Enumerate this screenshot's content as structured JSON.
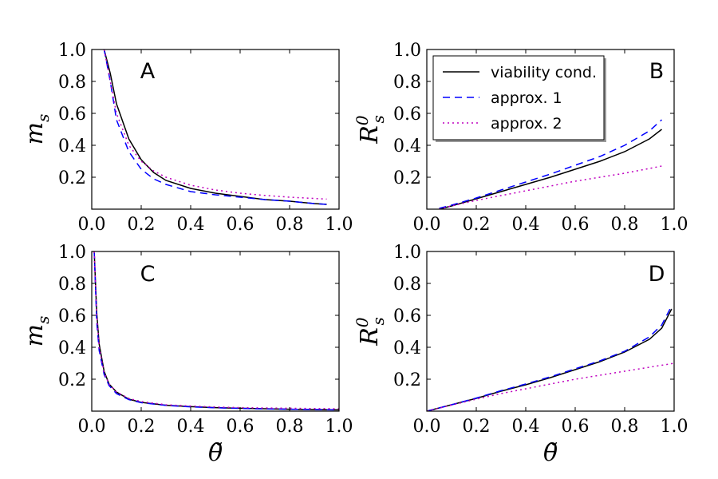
{
  "chart_data": [
    {
      "type": "line",
      "panel": "A",
      "ylabel": "m_s",
      "xlabel": "",
      "xlim": [
        0.0,
        1.0
      ],
      "ylim": [
        0.0,
        1.0
      ],
      "xticks": [
        "0.0",
        "0.2",
        "0.4",
        "0.6",
        "0.8",
        "1.0"
      ],
      "yticks": [
        "0.2",
        "0.4",
        "0.6",
        "0.8",
        "1.0"
      ],
      "series": [
        {
          "name": "viability cond.",
          "x": [
            0.05,
            0.075,
            0.1,
            0.15,
            0.2,
            0.25,
            0.3,
            0.4,
            0.5,
            0.6,
            0.7,
            0.8,
            0.9,
            0.95
          ],
          "y": [
            1.0,
            0.85,
            0.66,
            0.44,
            0.31,
            0.23,
            0.18,
            0.13,
            0.1,
            0.08,
            0.06,
            0.05,
            0.035,
            0.03
          ]
        },
        {
          "name": "approx. 1",
          "x": [
            0.05,
            0.075,
            0.1,
            0.15,
            0.2,
            0.25,
            0.3,
            0.4,
            0.5,
            0.6,
            0.7,
            0.8,
            0.9,
            0.95
          ],
          "y": [
            1.0,
            0.8,
            0.56,
            0.36,
            0.25,
            0.19,
            0.155,
            0.11,
            0.09,
            0.075,
            0.06,
            0.05,
            0.035,
            0.03
          ]
        },
        {
          "name": "approx. 2",
          "x": [
            0.05,
            0.075,
            0.1,
            0.15,
            0.2,
            0.25,
            0.3,
            0.4,
            0.5,
            0.6,
            0.7,
            0.8,
            0.9,
            0.95
          ],
          "y": [
            1.0,
            0.8,
            0.6,
            0.4,
            0.3,
            0.24,
            0.2,
            0.15,
            0.12,
            0.1,
            0.086,
            0.075,
            0.067,
            0.063
          ]
        }
      ]
    },
    {
      "type": "line",
      "panel": "B",
      "ylabel": "R_s^0",
      "xlabel": "",
      "xlim": [
        0.0,
        1.0
      ],
      "ylim": [
        0.0,
        1.0
      ],
      "xticks": [
        "0.0",
        "0.2",
        "0.4",
        "0.6",
        "0.8",
        "1.0"
      ],
      "yticks": [
        "0.2",
        "0.4",
        "0.6",
        "0.8",
        "1.0"
      ],
      "legend": "top-left",
      "series": [
        {
          "name": "viability cond.",
          "x": [
            0.05,
            0.1,
            0.2,
            0.3,
            0.4,
            0.5,
            0.6,
            0.7,
            0.8,
            0.9,
            0.95
          ],
          "y": [
            0.0,
            0.02,
            0.065,
            0.11,
            0.155,
            0.2,
            0.25,
            0.3,
            0.36,
            0.44,
            0.5
          ]
        },
        {
          "name": "approx. 1",
          "x": [
            0.05,
            0.1,
            0.2,
            0.3,
            0.4,
            0.5,
            0.6,
            0.7,
            0.8,
            0.9,
            0.95
          ],
          "y": [
            0.005,
            0.025,
            0.07,
            0.12,
            0.17,
            0.22,
            0.275,
            0.33,
            0.4,
            0.49,
            0.56
          ]
        },
        {
          "name": "approx. 2",
          "x": [
            0.05,
            0.1,
            0.2,
            0.3,
            0.4,
            0.5,
            0.6,
            0.7,
            0.8,
            0.9,
            0.95
          ],
          "y": [
            0.0,
            0.02,
            0.055,
            0.085,
            0.115,
            0.145,
            0.175,
            0.2,
            0.225,
            0.255,
            0.27
          ]
        }
      ]
    },
    {
      "type": "line",
      "panel": "C",
      "ylabel": "m_s",
      "xlabel": "θ̃",
      "xlim": [
        0.0,
        1.0
      ],
      "ylim": [
        0.0,
        1.0
      ],
      "xticks": [
        "0.0",
        "0.2",
        "0.4",
        "0.6",
        "0.8",
        "1.0"
      ],
      "yticks": [
        "0.2",
        "0.4",
        "0.6",
        "0.8",
        "1.0"
      ],
      "series": [
        {
          "name": "viability cond.",
          "x": [
            0.01,
            0.02,
            0.03,
            0.05,
            0.07,
            0.1,
            0.15,
            0.2,
            0.3,
            0.4,
            0.5,
            0.6,
            0.7,
            0.8,
            0.9,
            1.0
          ],
          "y": [
            1.0,
            0.62,
            0.42,
            0.25,
            0.17,
            0.12,
            0.075,
            0.055,
            0.037,
            0.028,
            0.022,
            0.018,
            0.015,
            0.012,
            0.01,
            0.008
          ]
        },
        {
          "name": "approx. 1",
          "x": [
            0.01,
            0.02,
            0.03,
            0.05,
            0.07,
            0.1,
            0.15,
            0.2,
            0.3,
            0.4,
            0.5,
            0.6,
            0.7,
            0.8,
            0.9,
            1.0
          ],
          "y": [
            1.0,
            0.56,
            0.38,
            0.23,
            0.16,
            0.11,
            0.072,
            0.053,
            0.036,
            0.027,
            0.021,
            0.017,
            0.014,
            0.012,
            0.01,
            0.008
          ]
        },
        {
          "name": "approx. 2",
          "x": [
            0.01,
            0.02,
            0.03,
            0.05,
            0.07,
            0.1,
            0.15,
            0.2,
            0.3,
            0.4,
            0.5,
            0.6,
            0.7,
            0.8,
            0.9,
            1.0
          ],
          "y": [
            1.0,
            0.6,
            0.4,
            0.24,
            0.17,
            0.12,
            0.08,
            0.06,
            0.04,
            0.032,
            0.026,
            0.022,
            0.02,
            0.018,
            0.016,
            0.015
          ]
        }
      ]
    },
    {
      "type": "line",
      "panel": "D",
      "ylabel": "R_s^0",
      "xlabel": "θ̃",
      "xlim": [
        0.0,
        1.0
      ],
      "ylim": [
        0.0,
        1.0
      ],
      "xticks": [
        "0.0",
        "0.2",
        "0.4",
        "0.6",
        "0.8",
        "1.0"
      ],
      "yticks": [
        "0.2",
        "0.4",
        "0.6",
        "0.8",
        "1.0"
      ],
      "series": [
        {
          "name": "viability cond.",
          "x": [
            0.0,
            0.1,
            0.2,
            0.3,
            0.4,
            0.5,
            0.6,
            0.7,
            0.8,
            0.9,
            0.95,
            0.99
          ],
          "y": [
            0.0,
            0.04,
            0.08,
            0.125,
            0.165,
            0.21,
            0.26,
            0.31,
            0.37,
            0.45,
            0.52,
            0.64
          ]
        },
        {
          "name": "approx. 1",
          "x": [
            0.0,
            0.1,
            0.2,
            0.3,
            0.4,
            0.5,
            0.6,
            0.7,
            0.8,
            0.9,
            0.95,
            0.99
          ],
          "y": [
            0.0,
            0.04,
            0.082,
            0.128,
            0.17,
            0.215,
            0.265,
            0.315,
            0.375,
            0.465,
            0.54,
            0.66
          ]
        },
        {
          "name": "approx. 2",
          "x": [
            0.0,
            0.1,
            0.2,
            0.3,
            0.4,
            0.5,
            0.6,
            0.7,
            0.8,
            0.9,
            1.0
          ],
          "y": [
            0.0,
            0.038,
            0.075,
            0.11,
            0.14,
            0.17,
            0.2,
            0.225,
            0.25,
            0.275,
            0.3
          ]
        }
      ]
    }
  ],
  "styles": {
    "viability cond.": {
      "color": "#000000",
      "dash": ""
    },
    "approx. 1": {
      "color": "#0000ff",
      "dash": "9,6"
    },
    "approx. 2": {
      "color": "#bf00bf",
      "dash": "2,4"
    }
  },
  "legend": {
    "entries": [
      "viability cond.",
      "approx. 1",
      "approx. 2"
    ]
  }
}
